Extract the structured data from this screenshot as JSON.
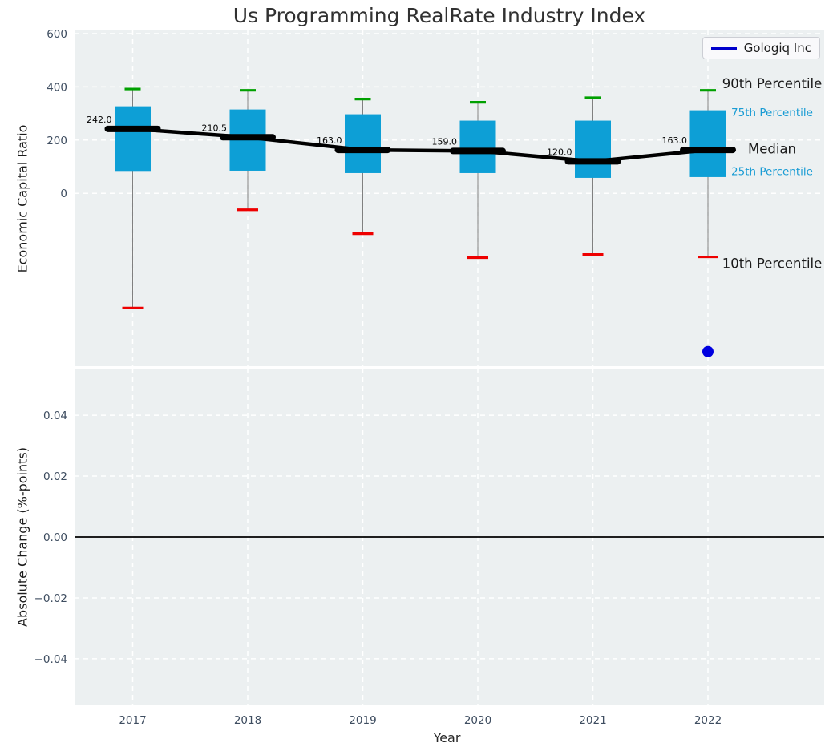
{
  "title": "Us Programming RealRate Industry Index",
  "legend": {
    "label": "Gologiq Inc"
  },
  "axes": {
    "top_ylabel": "Economic Capital Ratio",
    "bottom_ylabel": "Absolute Change (%-points)",
    "xlabel": "Year"
  },
  "colors": {
    "panel_bg": "#ecf0f1",
    "grid": "#ffffff",
    "box_fill": "#0d9fd6",
    "whisker": "#808080",
    "p90_cap": "#00a000",
    "p10_cap": "#ee0000",
    "median_line": "#000000",
    "company": "#0000dd",
    "company_dot": "#0000e0",
    "tick_text": "#3e4d60",
    "blue_text": "#1a9cd4",
    "black_text": "#1a1a1a",
    "zero_line": "#000000"
  },
  "chart_data": {
    "type": "boxplot",
    "title": "Us Programming RealRate Industry Index",
    "xlabel": "Year",
    "categories": [
      "2017",
      "2018",
      "2019",
      "2020",
      "2021",
      "2022"
    ],
    "panels": [
      {
        "name": "economic_capital_ratio",
        "ylabel": "Economic Capital Ratio",
        "ylim": [
          -650,
          612
        ],
        "grid": true,
        "legend": {
          "label": "Gologiq Inc",
          "position": "upper right"
        },
        "yticks": [
          {
            "value": 600,
            "label": "600"
          },
          {
            "value": 400,
            "label": "400"
          },
          {
            "value": 200,
            "label": "200"
          },
          {
            "value": 0,
            "label": "0"
          }
        ],
        "boxes": [
          {
            "year": "2017",
            "p90": 392,
            "p75": 327,
            "median": 242.0,
            "p25": 84,
            "p10": -431,
            "median_label": "242.0"
          },
          {
            "year": "2018",
            "p90": 387,
            "p75": 315,
            "median": 210.5,
            "p25": 85,
            "p10": -62,
            "median_label": "210.5"
          },
          {
            "year": "2019",
            "p90": 354,
            "p75": 297,
            "median": 163.0,
            "p25": 76,
            "p10": -152,
            "median_label": "163.0"
          },
          {
            "year": "2020",
            "p90": 342,
            "p75": 273,
            "median": 159.0,
            "p25": 76,
            "p10": -242,
            "median_label": "159.0"
          },
          {
            "year": "2021",
            "p90": 359,
            "p75": 273,
            "median": 120.0,
            "p25": 58,
            "p10": -230,
            "median_label": "120.0"
          },
          {
            "year": "2022",
            "p90": 387,
            "p75": 312,
            "median": 163.0,
            "p25": 61,
            "p10": -239,
            "median_label": "163.0"
          }
        ],
        "company_series": {
          "name": "Gologiq Inc",
          "points": [
            {
              "year": "2022",
              "value": -595
            }
          ]
        },
        "annotations": [
          {
            "text": "90th Percentile",
            "at": 413,
            "style": "black"
          },
          {
            "text": "75th Percentile",
            "at": 305,
            "style": "blue"
          },
          {
            "text": "Median",
            "at": 168,
            "style": "black"
          },
          {
            "text": "25th Percentile",
            "at": 84,
            "style": "blue"
          },
          {
            "text": "10th Percentile",
            "at": -263,
            "style": "black"
          }
        ]
      },
      {
        "name": "absolute_change",
        "ylabel": "Absolute Change (%-points)",
        "ylim": [
          -0.0553,
          0.0553
        ],
        "grid": true,
        "zero_line": true,
        "yticks": [
          {
            "value": 0.04,
            "label": "0.04"
          },
          {
            "value": 0.02,
            "label": "0.02"
          },
          {
            "value": 0,
            "label": "0.00"
          },
          {
            "value": -0.02,
            "label": "−0.02"
          },
          {
            "value": -0.04,
            "label": "−0.04"
          }
        ]
      }
    ]
  }
}
